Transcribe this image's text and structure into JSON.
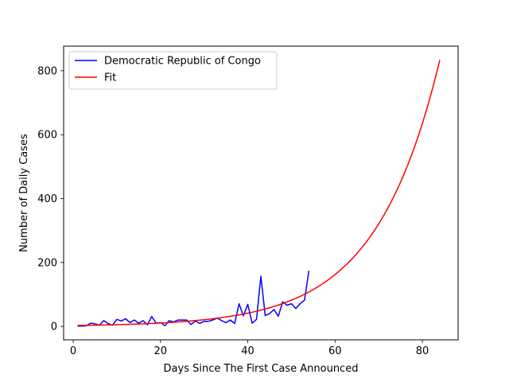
{
  "chart_data": {
    "type": "line",
    "title": "",
    "xlabel": "Days Since The First Case Announced",
    "ylabel": "Number of Daily Cases",
    "xlim": [
      -2.2,
      88.2
    ],
    "ylim": [
      -42,
      877
    ],
    "xticks": [
      0,
      20,
      40,
      60,
      80
    ],
    "yticks": [
      0,
      200,
      400,
      600,
      800
    ],
    "grid": false,
    "legend_position": "top-left",
    "series": [
      {
        "name": "Democratic Republic of Congo",
        "color": "#0000ff",
        "x": [
          1,
          2,
          3,
          4,
          5,
          6,
          7,
          8,
          9,
          10,
          11,
          12,
          13,
          14,
          15,
          16,
          17,
          18,
          19,
          20,
          21,
          22,
          23,
          24,
          25,
          26,
          27,
          28,
          29,
          30,
          31,
          32,
          33,
          34,
          35,
          36,
          37,
          38,
          39,
          40,
          41,
          42,
          43,
          44,
          45,
          46,
          47,
          48,
          49,
          50,
          51,
          52,
          53,
          54
        ],
        "y": [
          1,
          1,
          2,
          10,
          8,
          4,
          18,
          9,
          4,
          22,
          17,
          24,
          12,
          20,
          10,
          18,
          5,
          31,
          10,
          12,
          2,
          18,
          14,
          20,
          20,
          20,
          6,
          17,
          9,
          16,
          16,
          20,
          26,
          18,
          12,
          20,
          9,
          71,
          33,
          69,
          10,
          22,
          157,
          34,
          40,
          53,
          32,
          77,
          66,
          71,
          56,
          71,
          82,
          174
        ]
      },
      {
        "name": "Fit",
        "color": "#ff0000",
        "fit": {
          "model": "exponential",
          "a": 2.71,
          "b": 0.0682
        },
        "x_range": [
          1,
          84
        ]
      }
    ]
  }
}
